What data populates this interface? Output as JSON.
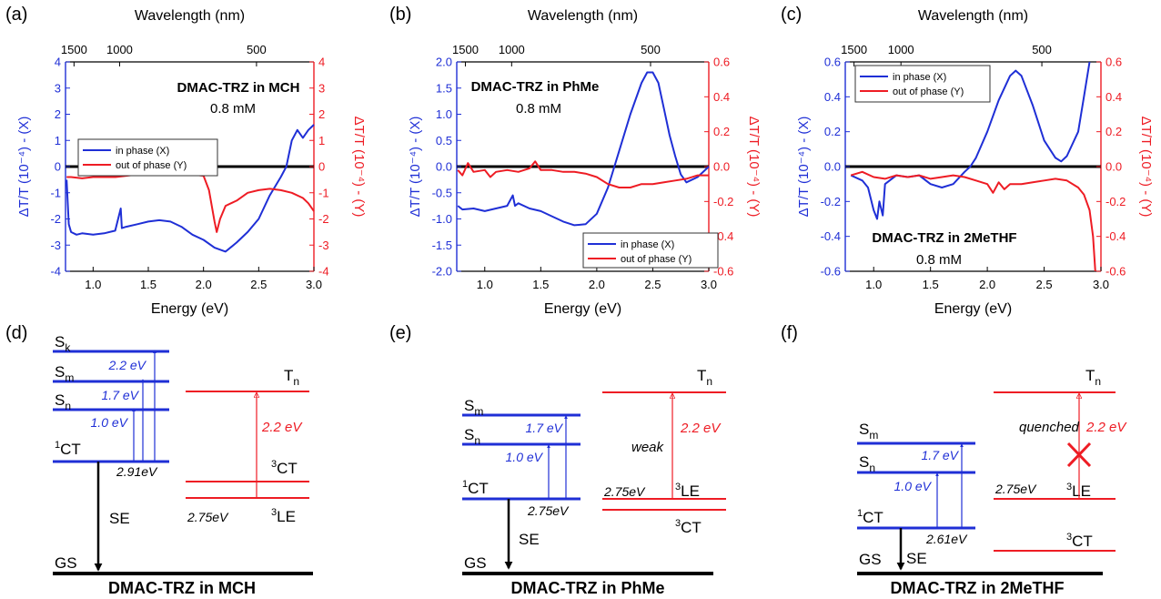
{
  "colors": {
    "blue": "#1f2fd6",
    "red": "#ee1c24",
    "black": "#000000"
  },
  "axis_labels": {
    "top": "Wavelength (nm)",
    "bottom": "Energy (eV)",
    "left": "ΔT/T (10⁻⁴) - (X)",
    "right": "ΔT/T (10⁻⁴) - (Y)"
  },
  "panel_labels": [
    "(a)",
    "(b)",
    "(c)",
    "(d)",
    "(e)",
    "(f)"
  ],
  "chart_data": [
    {
      "type": "line",
      "panel": "(a)",
      "annotation": "DMAC-TRZ in MCH",
      "concentration": "0.8 mM",
      "xlabel": "Energy (eV)",
      "top_xlabel": "Wavelength (nm)",
      "ylabel_left": "ΔT/T (10⁻⁴) - (X)",
      "ylabel_right": "ΔT/T (10⁻⁴) - (Y)",
      "xlim": [
        0.75,
        3.0
      ],
      "ylim_left": [
        -4,
        4
      ],
      "ylim_right": [
        -4,
        4
      ],
      "xticks": [
        "1.0",
        "1.5",
        "2.0",
        "2.5",
        "3.0"
      ],
      "yticks_left": [
        "4",
        "3",
        "2",
        "1",
        "0",
        "-1",
        "-2",
        "-3",
        "-4"
      ],
      "yticks_right": [
        "4",
        "3",
        "2",
        "1",
        "0",
        "-1",
        "-2",
        "-3",
        "-4"
      ],
      "top_ticks": [
        {
          "label": "1500",
          "x": 0.827
        },
        {
          "label": "1000",
          "x": 1.24
        },
        {
          "label": "500",
          "x": 2.48
        }
      ],
      "legend_position": "left-middle",
      "series": [
        {
          "name": "in phase (X)",
          "color": "#1f2fd6",
          "axis": "left",
          "x": [
            0.76,
            0.78,
            0.8,
            0.85,
            0.9,
            1.0,
            1.1,
            1.2,
            1.25,
            1.26,
            1.3,
            1.4,
            1.5,
            1.6,
            1.7,
            1.8,
            1.9,
            2.0,
            2.1,
            2.2,
            2.3,
            2.4,
            2.5,
            2.6,
            2.7,
            2.75,
            2.8,
            2.85,
            2.9,
            2.95,
            3.0
          ],
          "y": [
            -0.5,
            -2.2,
            -2.5,
            -2.6,
            -2.55,
            -2.6,
            -2.55,
            -2.45,
            -1.6,
            -2.35,
            -2.3,
            -2.2,
            -2.1,
            -2.05,
            -2.1,
            -2.3,
            -2.6,
            -2.8,
            -3.1,
            -3.25,
            -2.9,
            -2.5,
            -2.0,
            -1.1,
            -0.4,
            0.0,
            1.0,
            1.4,
            1.1,
            1.4,
            1.6
          ]
        },
        {
          "name": "out of phase (Y)",
          "color": "#ee1c24",
          "axis": "right",
          "x": [
            0.76,
            0.8,
            0.9,
            1.0,
            1.1,
            1.2,
            1.3,
            1.4,
            1.5,
            1.6,
            1.7,
            1.8,
            1.9,
            2.0,
            2.05,
            2.1,
            2.12,
            2.15,
            2.2,
            2.3,
            2.4,
            2.5,
            2.6,
            2.7,
            2.8,
            2.9,
            2.95,
            3.0
          ],
          "y": [
            -0.4,
            -0.4,
            -0.45,
            -0.4,
            -0.4,
            -0.4,
            -0.35,
            -0.3,
            -0.3,
            -0.3,
            -0.3,
            -0.3,
            -0.3,
            -0.35,
            -0.9,
            -2.1,
            -2.5,
            -2.0,
            -1.5,
            -1.3,
            -1.0,
            -0.9,
            -0.85,
            -0.9,
            -1.0,
            -1.2,
            -1.4,
            -1.7
          ]
        }
      ]
    },
    {
      "type": "line",
      "panel": "(b)",
      "annotation": "DMAC-TRZ in PhMe",
      "concentration": "0.8 mM",
      "xlabel": "Energy (eV)",
      "top_xlabel": "Wavelength (nm)",
      "ylabel_left": "ΔT/T (10⁻⁴) - (X)",
      "ylabel_right": "ΔT/T (10⁻⁴) - (Y)",
      "xlim": [
        0.75,
        3.0
      ],
      "ylim_left": [
        -2.0,
        2.0
      ],
      "ylim_right": [
        -0.6,
        0.6
      ],
      "xticks": [
        "1.0",
        "1.5",
        "2.0",
        "2.5",
        "3.0"
      ],
      "yticks_left": [
        "2.0",
        "1.5",
        "1.0",
        "0.5",
        "0.0",
        "-0.5",
        "-1.0",
        "-1.5",
        "-2.0"
      ],
      "yticks_right": [
        "0.6",
        "0.4",
        "0.2",
        "0.0",
        "-0.2",
        "-0.4",
        "-0.6"
      ],
      "top_ticks": [
        {
          "label": "1500",
          "x": 0.827
        },
        {
          "label": "1000",
          "x": 1.24
        },
        {
          "label": "500",
          "x": 2.48
        }
      ],
      "legend_position": "bottom-right",
      "series": [
        {
          "name": "in phase (X)",
          "color": "#1f2fd6",
          "axis": "left",
          "x": [
            0.76,
            0.8,
            0.9,
            1.0,
            1.1,
            1.2,
            1.25,
            1.27,
            1.3,
            1.4,
            1.5,
            1.6,
            1.7,
            1.8,
            1.9,
            2.0,
            2.1,
            2.2,
            2.3,
            2.4,
            2.45,
            2.5,
            2.55,
            2.6,
            2.65,
            2.7,
            2.75,
            2.8,
            2.9,
            3.0
          ],
          "y": [
            -0.75,
            -0.82,
            -0.8,
            -0.85,
            -0.8,
            -0.75,
            -0.55,
            -0.75,
            -0.7,
            -0.8,
            -0.85,
            -0.95,
            -1.05,
            -1.12,
            -1.1,
            -0.9,
            -0.4,
            0.3,
            1.0,
            1.6,
            1.8,
            1.8,
            1.6,
            1.1,
            0.6,
            0.2,
            -0.15,
            -0.3,
            -0.2,
            0.0
          ]
        },
        {
          "name": "out of phase (Y)",
          "color": "#ee1c24",
          "axis": "right",
          "x": [
            0.76,
            0.8,
            0.85,
            0.9,
            1.0,
            1.05,
            1.1,
            1.2,
            1.3,
            1.4,
            1.45,
            1.5,
            1.6,
            1.7,
            1.8,
            1.9,
            2.0,
            2.1,
            2.2,
            2.3,
            2.4,
            2.5,
            2.6,
            2.7,
            2.8,
            2.9,
            3.0
          ],
          "y": [
            -0.02,
            -0.05,
            0.02,
            -0.03,
            -0.02,
            -0.06,
            -0.03,
            -0.02,
            -0.03,
            -0.01,
            0.03,
            -0.02,
            -0.02,
            -0.03,
            -0.03,
            -0.04,
            -0.06,
            -0.1,
            -0.12,
            -0.12,
            -0.1,
            -0.1,
            -0.09,
            -0.08,
            -0.07,
            -0.05,
            -0.05
          ]
        }
      ]
    },
    {
      "type": "line",
      "panel": "(c)",
      "annotation": "DMAC-TRZ in 2MeTHF",
      "concentration": "0.8 mM",
      "xlabel": "Energy (eV)",
      "top_xlabel": "Wavelength (nm)",
      "ylabel_left": "ΔT/T (10⁻⁴) - (X)",
      "ylabel_right": "ΔT/T (10⁻⁴) - (Y)",
      "xlim": [
        0.75,
        3.0
      ],
      "ylim_left": [
        -0.6,
        0.6
      ],
      "ylim_right": [
        -0.6,
        0.6
      ],
      "xticks": [
        "1.0",
        "1.5",
        "2.0",
        "2.5",
        "3.0"
      ],
      "yticks_left": [
        "0.6",
        "0.4",
        "0.2",
        "0.0",
        "-0.2",
        "-0.4",
        "-0.6"
      ],
      "yticks_right": [
        "0.6",
        "0.4",
        "0.2",
        "0.0",
        "-0.2",
        "-0.4",
        "-0.6"
      ],
      "top_ticks": [
        {
          "label": "1500",
          "x": 0.827
        },
        {
          "label": "1000",
          "x": 1.24
        },
        {
          "label": "500",
          "x": 2.48
        }
      ],
      "legend_position": "top-left",
      "series": [
        {
          "name": "in phase (X)",
          "color": "#1f2fd6",
          "axis": "left",
          "x": [
            0.8,
            0.9,
            0.95,
            1.0,
            1.03,
            1.05,
            1.08,
            1.1,
            1.2,
            1.3,
            1.4,
            1.5,
            1.6,
            1.7,
            1.8,
            1.85,
            1.9,
            2.0,
            2.1,
            2.2,
            2.25,
            2.3,
            2.4,
            2.5,
            2.6,
            2.65,
            2.7,
            2.8,
            2.85,
            2.9
          ],
          "y": [
            -0.05,
            -0.08,
            -0.12,
            -0.25,
            -0.3,
            -0.2,
            -0.28,
            -0.1,
            -0.05,
            -0.06,
            -0.05,
            -0.1,
            -0.12,
            -0.1,
            -0.03,
            0.0,
            0.05,
            0.2,
            0.38,
            0.52,
            0.55,
            0.52,
            0.35,
            0.15,
            0.05,
            0.03,
            0.06,
            0.2,
            0.4,
            0.6
          ]
        },
        {
          "name": "out of phase (Y)",
          "color": "#ee1c24",
          "axis": "right",
          "x": [
            0.8,
            0.9,
            1.0,
            1.1,
            1.2,
            1.3,
            1.4,
            1.5,
            1.6,
            1.7,
            1.8,
            1.9,
            2.0,
            2.05,
            2.1,
            2.15,
            2.2,
            2.3,
            2.4,
            2.5,
            2.6,
            2.7,
            2.8,
            2.85,
            2.9,
            2.93,
            2.95
          ],
          "y": [
            -0.05,
            -0.03,
            -0.06,
            -0.07,
            -0.05,
            -0.06,
            -0.05,
            -0.07,
            -0.06,
            -0.05,
            -0.06,
            -0.08,
            -0.1,
            -0.15,
            -0.09,
            -0.13,
            -0.1,
            -0.1,
            -0.09,
            -0.08,
            -0.07,
            -0.08,
            -0.12,
            -0.16,
            -0.25,
            -0.4,
            -0.6
          ]
        }
      ]
    }
  ],
  "diagrams": [
    {
      "panel": "(d)",
      "caption": "DMAC-TRZ in MCH",
      "singlet_levels": [
        {
          "base": "S",
          "sub": "k"
        },
        {
          "base": "S",
          "sub": "m"
        },
        {
          "base": "S",
          "sub": "n"
        },
        {
          "base": "",
          "sup": "1",
          "tail": "CT"
        },
        {
          "base": "GS"
        }
      ],
      "triplet_levels": [
        {
          "base": "T",
          "sub": "n"
        },
        {
          "base": "",
          "sup": "3",
          "tail": "CT"
        },
        {
          "base": "",
          "sup": "3",
          "tail": "LE"
        }
      ],
      "singlet_transitions": [
        "2.2 eV",
        "1.7 eV",
        "1.0 eV"
      ],
      "triplet_transitions": [
        "2.2 eV"
      ],
      "energies": [
        "2.91eV",
        "2.75eV"
      ],
      "emission": "SE",
      "note": ""
    },
    {
      "panel": "(e)",
      "caption": "DMAC-TRZ in PhMe",
      "singlet_levels": [
        {
          "base": "S",
          "sub": "m"
        },
        {
          "base": "S",
          "sub": "n"
        },
        {
          "base": "",
          "sup": "1",
          "tail": "CT"
        },
        {
          "base": "GS"
        }
      ],
      "triplet_levels": [
        {
          "base": "T",
          "sub": "n"
        },
        {
          "base": "",
          "sup": "3",
          "tail": "LE"
        },
        {
          "base": "",
          "sup": "3",
          "tail": "CT"
        }
      ],
      "singlet_transitions": [
        "1.7 eV",
        "1.0 eV"
      ],
      "triplet_transitions": [
        "2.2 eV"
      ],
      "energies": [
        "2.75eV",
        "2.75eV"
      ],
      "emission": "SE",
      "note": "weak"
    },
    {
      "panel": "(f)",
      "caption": "DMAC-TRZ in 2MeTHF",
      "singlet_levels": [
        {
          "base": "S",
          "sub": "m"
        },
        {
          "base": "S",
          "sub": "n"
        },
        {
          "base": "",
          "sup": "1",
          "tail": "CT"
        },
        {
          "base": "GS"
        }
      ],
      "triplet_levels": [
        {
          "base": "T",
          "sub": "n"
        },
        {
          "base": "",
          "sup": "3",
          "tail": "LE"
        },
        {
          "base": "",
          "sup": "3",
          "tail": "CT"
        }
      ],
      "singlet_transitions": [
        "1.7 eV",
        "1.0 eV"
      ],
      "triplet_transitions": [
        "2.2 eV"
      ],
      "energies": [
        "2.61eV",
        "2.75eV"
      ],
      "emission": "SE",
      "note": "quenched"
    }
  ]
}
